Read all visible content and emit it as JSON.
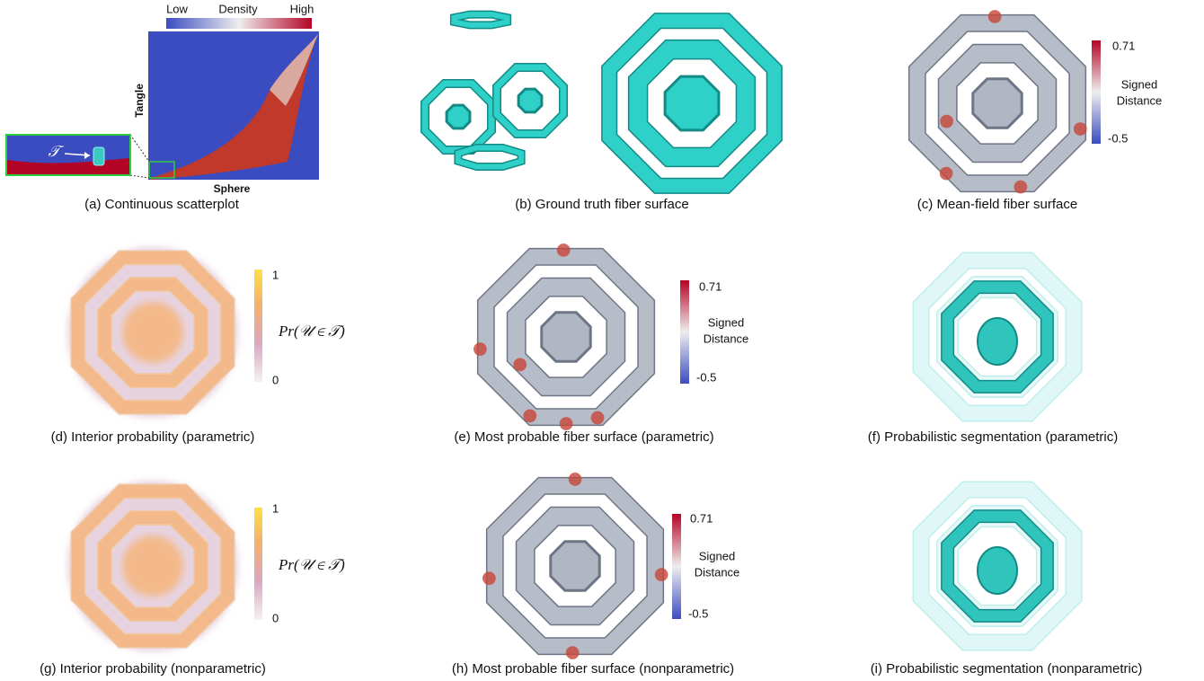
{
  "panels": [
    {
      "caption": "(a) Continuous scatterplot",
      "colorbar": {
        "low": "Low",
        "title": "Density",
        "high": "High"
      },
      "x_label": "Sphere",
      "y_label": "Tangle",
      "symbol": "𝒯"
    },
    {
      "caption": "(b) Ground truth fiber surface"
    },
    {
      "caption": "(c) Mean-field fiber surface",
      "colorbar": {
        "max": 0.71,
        "title_line1": "Signed",
        "title_line2": "Distance",
        "min": -0.5
      }
    },
    {
      "caption": "(d) Interior probability (parametric)",
      "colorbar": {
        "max": 1,
        "label": "Pr(𝒰 ∈ 𝒯)",
        "min": 0
      }
    },
    {
      "caption": "(e) Most probable fiber surface (parametric)",
      "colorbar": {
        "max": 0.71,
        "title_line1": "Signed",
        "title_line2": "Distance",
        "min": -0.5
      }
    },
    {
      "caption": "(f) Probabilistic segmentation (parametric)"
    },
    {
      "caption": "(g) Interior probability (nonparametric)",
      "colorbar": {
        "max": 1,
        "label": "Pr(𝒰 ∈ 𝒯)",
        "min": 0
      }
    },
    {
      "caption": "(h) Most probable fiber surface (nonparametric)",
      "colorbar": {
        "max": 0.71,
        "title_line1": "Signed",
        "title_line2": "Distance",
        "min": -0.5
      }
    },
    {
      "caption": "(i) Probabilistic segmentation (nonparametric)"
    }
  ]
}
